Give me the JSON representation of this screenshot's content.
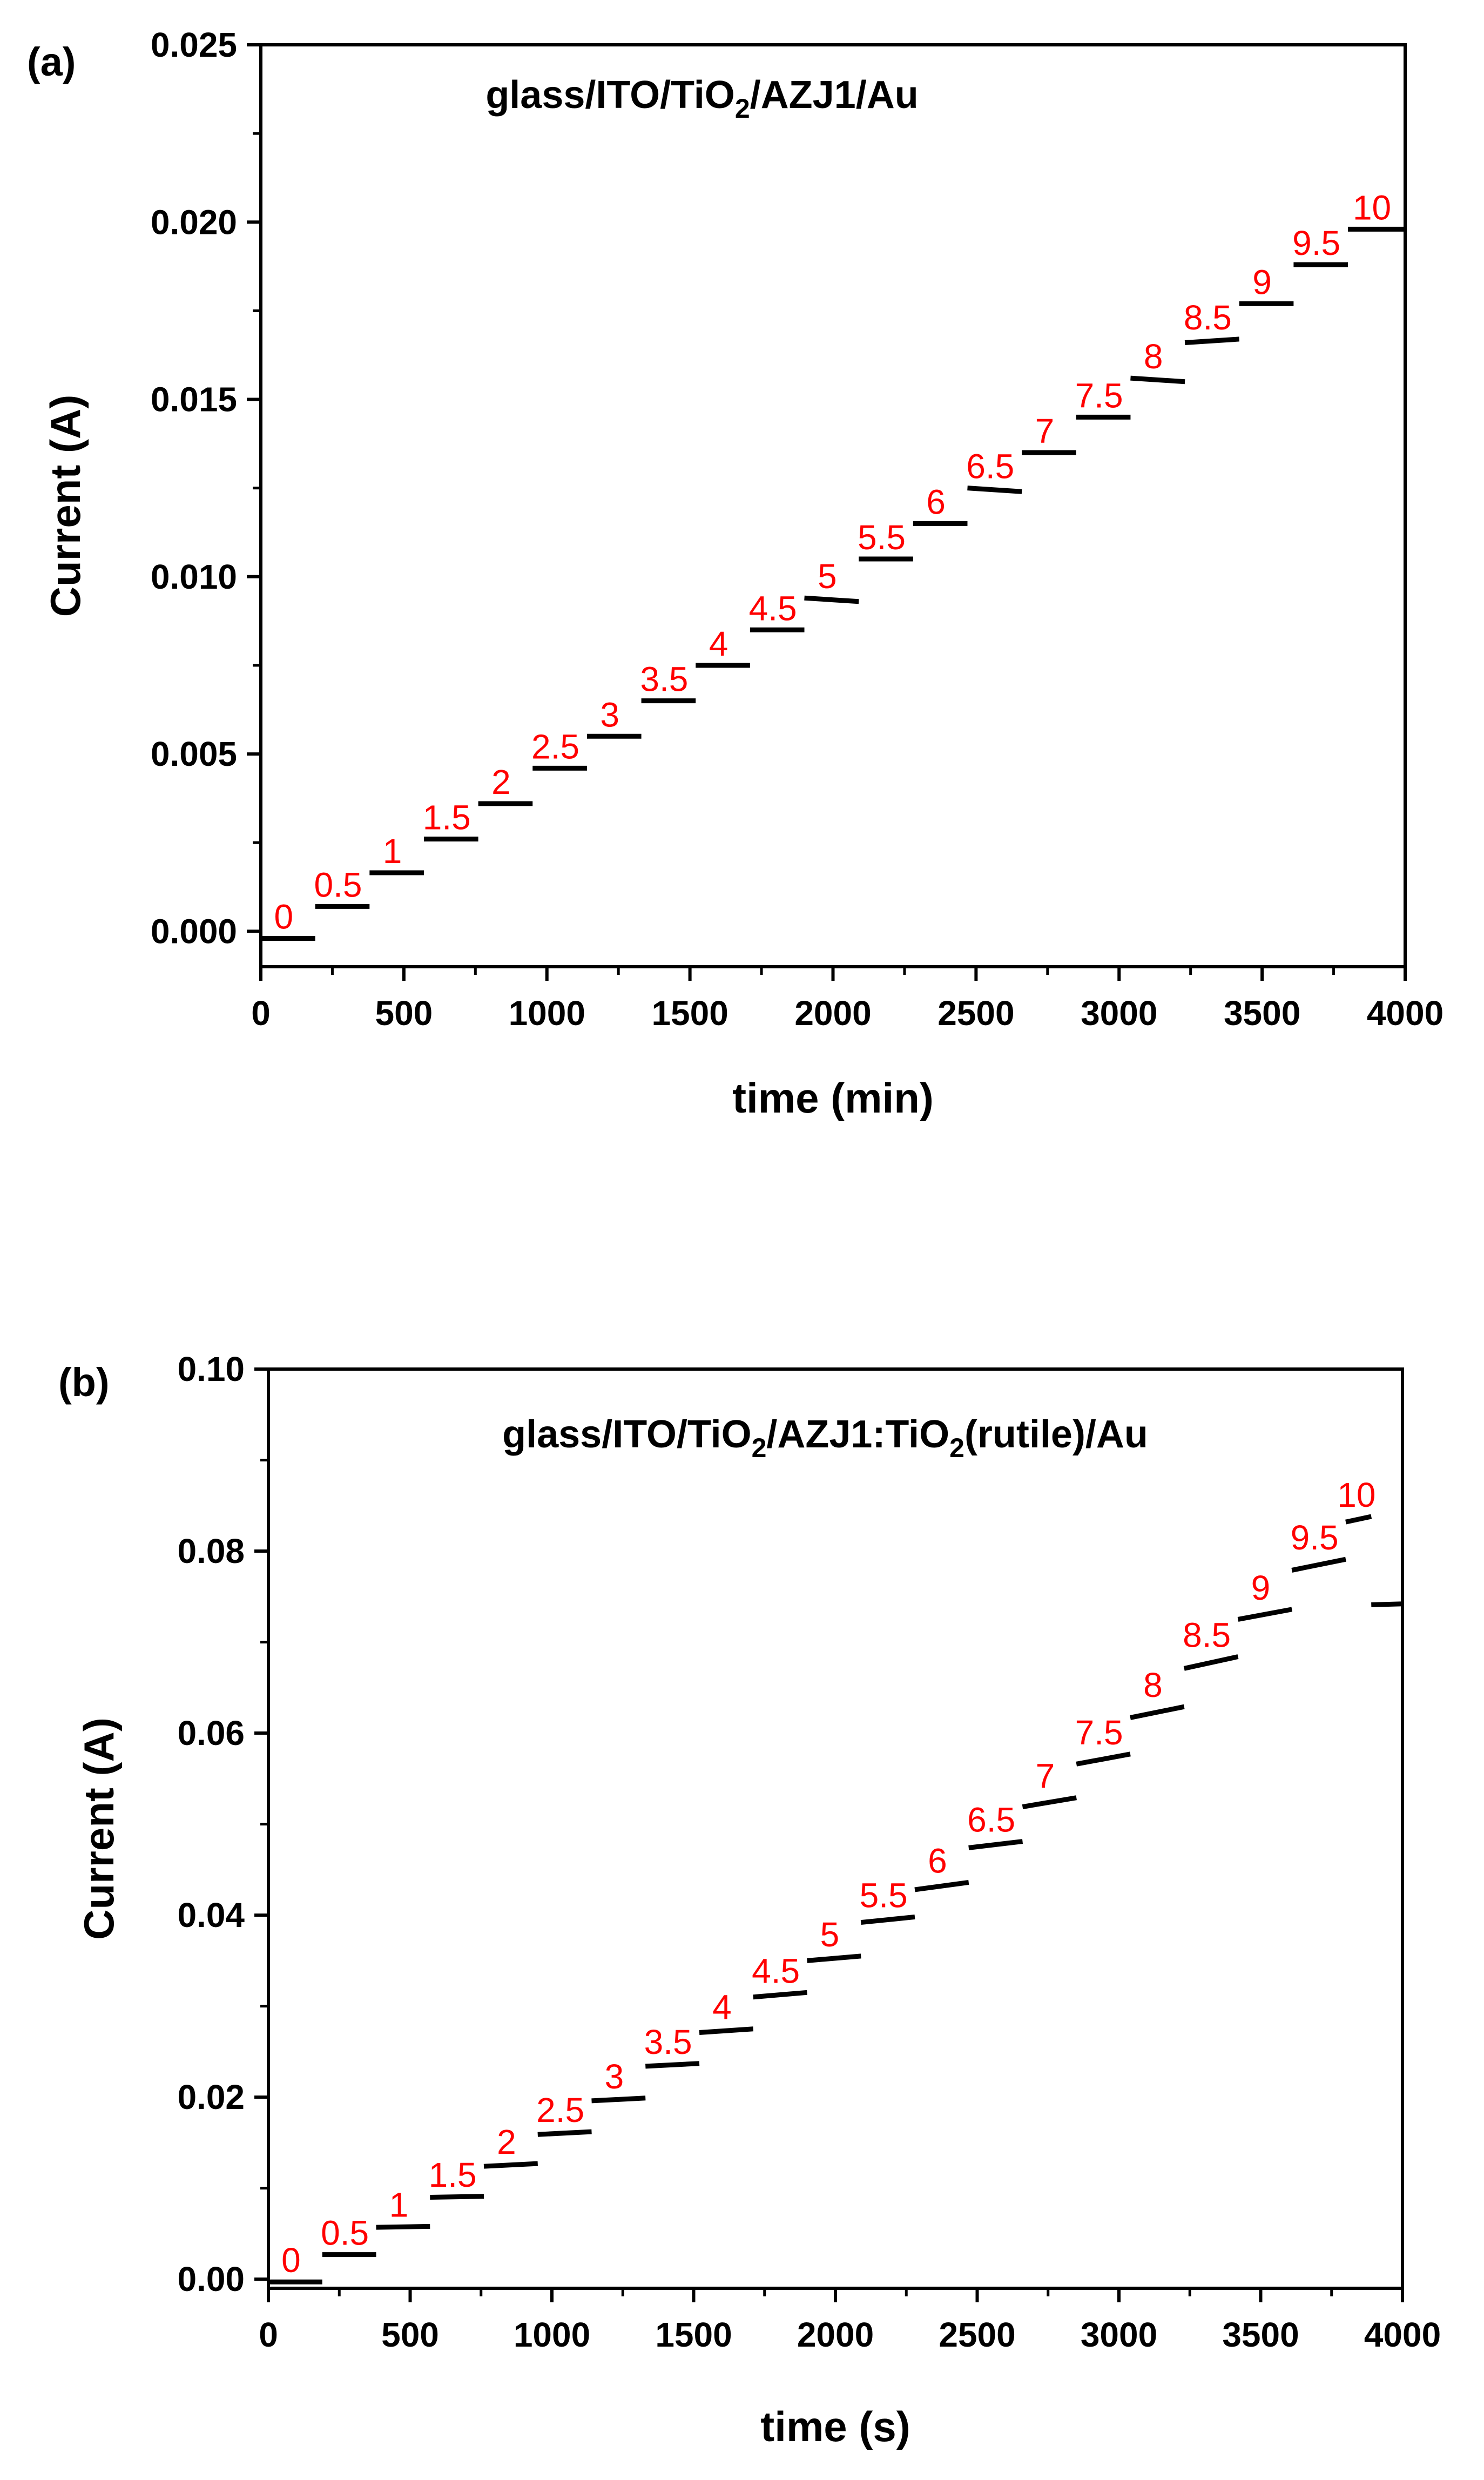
{
  "colors": {
    "axis": "#000000",
    "step_label": "#ff0000",
    "segment": "#000000",
    "background": "#ffffff"
  },
  "chart_data": [
    {
      "type": "line",
      "panel_label": "(a)",
      "title_parts": [
        "glass/ITO/TiO",
        "2",
        "/AZJ1/Au"
      ],
      "xlabel": "time (min)",
      "ylabel": "Current (A)",
      "xlim": [
        0,
        4000
      ],
      "ylim": [
        -0.001,
        0.025
      ],
      "x_ticks": [
        0,
        500,
        1000,
        1500,
        2000,
        2500,
        3000,
        3500,
        4000
      ],
      "x_tick_labels": [
        "0",
        "500",
        "1000",
        "1500",
        "2000",
        "2500",
        "3000",
        "3500",
        "4000"
      ],
      "y_ticks": [
        0.0,
        0.005,
        0.01,
        0.015,
        0.02,
        0.025
      ],
      "y_tick_labels": [
        "0.000",
        "0.005",
        "0.010",
        "0.015",
        "0.020",
        "0.025"
      ],
      "segments": [
        {
          "x0": 0,
          "x1": 190,
          "y0": -0.0002,
          "y1": -0.0002,
          "label": "0"
        },
        {
          "x0": 190,
          "x1": 380,
          "y0": 0.0007,
          "y1": 0.0007,
          "label": "0.5"
        },
        {
          "x0": 380,
          "x1": 570,
          "y0": 0.00165,
          "y1": 0.00165,
          "label": "1"
        },
        {
          "x0": 570,
          "x1": 760,
          "y0": 0.0026,
          "y1": 0.0026,
          "label": "1.5"
        },
        {
          "x0": 760,
          "x1": 950,
          "y0": 0.0036,
          "y1": 0.0036,
          "label": "2"
        },
        {
          "x0": 950,
          "x1": 1140,
          "y0": 0.0046,
          "y1": 0.0046,
          "label": "2.5"
        },
        {
          "x0": 1140,
          "x1": 1330,
          "y0": 0.0055,
          "y1": 0.0055,
          "label": "3"
        },
        {
          "x0": 1330,
          "x1": 1520,
          "y0": 0.0065,
          "y1": 0.0065,
          "label": "3.5"
        },
        {
          "x0": 1520,
          "x1": 1710,
          "y0": 0.0075,
          "y1": 0.0075,
          "label": "4"
        },
        {
          "x0": 1710,
          "x1": 1900,
          "y0": 0.0085,
          "y1": 0.0085,
          "label": "4.5"
        },
        {
          "x0": 1900,
          "x1": 2090,
          "y0": 0.0094,
          "y1": 0.0093,
          "label": "5"
        },
        {
          "x0": 2090,
          "x1": 2280,
          "y0": 0.0105,
          "y1": 0.0105,
          "label": "5.5"
        },
        {
          "x0": 2280,
          "x1": 2470,
          "y0": 0.0115,
          "y1": 0.0115,
          "label": "6"
        },
        {
          "x0": 2470,
          "x1": 2660,
          "y0": 0.0125,
          "y1": 0.0124,
          "label": "6.5"
        },
        {
          "x0": 2660,
          "x1": 2850,
          "y0": 0.0135,
          "y1": 0.0135,
          "label": "7"
        },
        {
          "x0": 2850,
          "x1": 3040,
          "y0": 0.0145,
          "y1": 0.0145,
          "label": "7.5"
        },
        {
          "x0": 3040,
          "x1": 3230,
          "y0": 0.0156,
          "y1": 0.0155,
          "label": "8"
        },
        {
          "x0": 3230,
          "x1": 3420,
          "y0": 0.0166,
          "y1": 0.0167,
          "label": "8.5"
        },
        {
          "x0": 3420,
          "x1": 3610,
          "y0": 0.0177,
          "y1": 0.0177,
          "label": "9"
        },
        {
          "x0": 3610,
          "x1": 3800,
          "y0": 0.0188,
          "y1": 0.0188,
          "label": "9.5"
        },
        {
          "x0": 3800,
          "x1": 4000,
          "y0": 0.0198,
          "y1": 0.0198,
          "label": "10"
        }
      ]
    },
    {
      "type": "line",
      "panel_label": "(b)",
      "title_parts": [
        "glass/ITO/TiO",
        "2",
        "/AZJ1:TiO",
        "2",
        "(rutile)/Au"
      ],
      "xlabel": "time (s)",
      "ylabel": "Current (A)",
      "xlim": [
        0,
        4000
      ],
      "ylim": [
        -0.001,
        0.1
      ],
      "x_ticks": [
        0,
        500,
        1000,
        1500,
        2000,
        2500,
        3000,
        3500,
        4000
      ],
      "x_tick_labels": [
        "0",
        "500",
        "1000",
        "1500",
        "2000",
        "2500",
        "3000",
        "3500",
        "4000"
      ],
      "y_ticks": [
        0.0,
        0.02,
        0.04,
        0.06,
        0.08,
        0.1
      ],
      "y_tick_labels": [
        "0.00",
        "0.02",
        "0.04",
        "0.06",
        "0.08",
        "0.10"
      ],
      "segments": [
        {
          "x0": 0,
          "x1": 190,
          "y0": -0.0003,
          "y1": -0.0003,
          "label": "0"
        },
        {
          "x0": 190,
          "x1": 380,
          "y0": 0.0027,
          "y1": 0.0027,
          "label": "0.5"
        },
        {
          "x0": 380,
          "x1": 570,
          "y0": 0.0057,
          "y1": 0.0058,
          "label": "1"
        },
        {
          "x0": 570,
          "x1": 760,
          "y0": 0.009,
          "y1": 0.0091,
          "label": "1.5"
        },
        {
          "x0": 760,
          "x1": 950,
          "y0": 0.0124,
          "y1": 0.0127,
          "label": "2"
        },
        {
          "x0": 950,
          "x1": 1140,
          "y0": 0.0159,
          "y1": 0.0162,
          "label": "2.5"
        },
        {
          "x0": 1140,
          "x1": 1330,
          "y0": 0.0196,
          "y1": 0.0199,
          "label": "3"
        },
        {
          "x0": 1330,
          "x1": 1520,
          "y0": 0.0234,
          "y1": 0.0237,
          "label": "3.5"
        },
        {
          "x0": 1520,
          "x1": 1710,
          "y0": 0.0271,
          "y1": 0.0275,
          "label": "4"
        },
        {
          "x0": 1710,
          "x1": 1900,
          "y0": 0.031,
          "y1": 0.0315,
          "label": "4.5"
        },
        {
          "x0": 1900,
          "x1": 2090,
          "y0": 0.035,
          "y1": 0.0355,
          "label": "5"
        },
        {
          "x0": 2090,
          "x1": 2280,
          "y0": 0.0392,
          "y1": 0.0398,
          "label": "5.5"
        },
        {
          "x0": 2280,
          "x1": 2470,
          "y0": 0.0428,
          "y1": 0.0436,
          "label": "6"
        },
        {
          "x0": 2470,
          "x1": 2660,
          "y0": 0.0474,
          "y1": 0.0481,
          "label": "6.5"
        },
        {
          "x0": 2660,
          "x1": 2850,
          "y0": 0.0519,
          "y1": 0.0529,
          "label": "7"
        },
        {
          "x0": 2850,
          "x1": 3040,
          "y0": 0.0566,
          "y1": 0.0577,
          "label": "7.5"
        },
        {
          "x0": 3040,
          "x1": 3230,
          "y0": 0.0617,
          "y1": 0.0629,
          "label": "8"
        },
        {
          "x0": 3230,
          "x1": 3420,
          "y0": 0.0671,
          "y1": 0.0684,
          "label": "8.5"
        },
        {
          "x0": 3420,
          "x1": 3610,
          "y0": 0.0725,
          "y1": 0.0736,
          "label": "9"
        },
        {
          "x0": 3610,
          "x1": 3800,
          "y0": 0.0779,
          "y1": 0.0791,
          "label": "9.5"
        },
        {
          "x0": 3800,
          "x1": 3890,
          "y0": 0.0832,
          "y1": 0.0838,
          "label": "10"
        },
        {
          "x0": 3890,
          "x1": 4000,
          "y0": 0.0741,
          "y1": 0.0742,
          "label": ""
        }
      ]
    }
  ]
}
